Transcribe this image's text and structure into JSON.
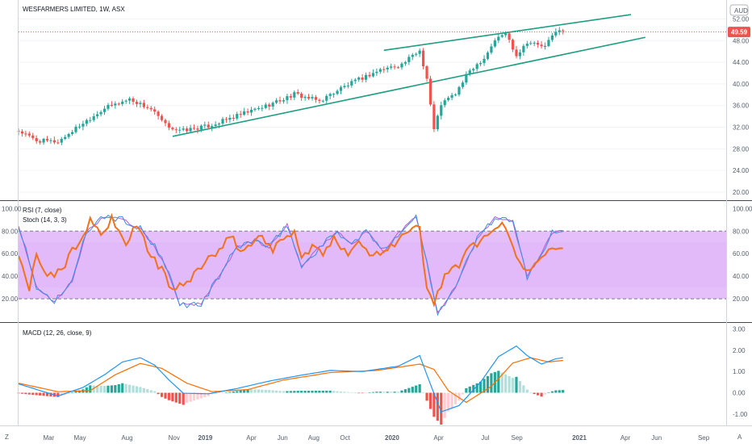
{
  "chart_data": [
    {
      "type": "candlestick",
      "title": "WESFARMERS LIMITED, 1W, ASX",
      "currency": "AUD",
      "last_price": "49.59",
      "y_ticks": [
        "52.00",
        "48.00",
        "44.00",
        "40.00",
        "36.00",
        "32.00",
        "28.00",
        "24.00",
        "20.00"
      ],
      "ylim": [
        18.5,
        55.5
      ],
      "colors": {
        "up": "#26a69a",
        "down": "#ef5350",
        "trendline": "#1e9e82",
        "price_tag": "#ef5350"
      },
      "trendlines": [
        {
          "from": [
            "2018-10-29",
            30.3
          ],
          "to": [
            "2021-05-10",
            48.6
          ]
        },
        {
          "from": [
            "2019-12-16",
            46.2
          ],
          "to": [
            "2021-04-12",
            52.8
          ]
        }
      ],
      "x_labels": [
        "Mar",
        "May",
        "Aug",
        "Nov",
        "2019",
        "Apr",
        "Jun",
        "Aug",
        "Oct",
        "2020",
        "Apr",
        "Jul",
        "Sep",
        "2021",
        "Apr",
        "Jun",
        "Sep"
      ],
      "close_anchors": [
        [
          "2018-01-01",
          31.3
        ],
        [
          "2018-02-05",
          29.5
        ],
        [
          "2018-03-19",
          29.3
        ],
        [
          "2018-05-07",
          32.8
        ],
        [
          "2018-06-18",
          35.5
        ],
        [
          "2018-08-06",
          37.2
        ],
        [
          "2018-09-17",
          35.3
        ],
        [
          "2018-10-15",
          32.4
        ],
        [
          "2018-11-12",
          31.3
        ],
        [
          "2019-01-07",
          32.2
        ],
        [
          "2019-02-18",
          33.6
        ],
        [
          "2019-04-22",
          35.7
        ],
        [
          "2019-06-03",
          37.2
        ],
        [
          "2019-06-24",
          38.1
        ],
        [
          "2019-08-12",
          36.8
        ],
        [
          "2019-09-23",
          39.2
        ],
        [
          "2019-11-04",
          41.1
        ],
        [
          "2019-12-09",
          42.6
        ],
        [
          "2020-01-20",
          43.6
        ],
        [
          "2020-02-24",
          46.2
        ],
        [
          "2020-03-09",
          41.0
        ],
        [
          "2020-03-23",
          31.5
        ],
        [
          "2020-04-06",
          36.3
        ],
        [
          "2020-05-04",
          38.2
        ],
        [
          "2020-06-01",
          42.5
        ],
        [
          "2020-06-29",
          44.8
        ],
        [
          "2020-07-20",
          48.1
        ],
        [
          "2020-08-10",
          49.4
        ],
        [
          "2020-08-31",
          45.3
        ],
        [
          "2020-09-21",
          47.8
        ],
        [
          "2020-10-26",
          46.8
        ],
        [
          "2020-11-16",
          49.9
        ],
        [
          "2020-11-30",
          49.6
        ]
      ]
    },
    {
      "type": "line",
      "title": "RSI (7, close)",
      "subtitle": "Stoch (14, 3, 3)",
      "y_ticks": [
        "100.00",
        "80.00",
        "60.00",
        "40.00",
        "20.00"
      ],
      "ylim": [
        0,
        106
      ],
      "band": [
        20,
        80
      ],
      "colors": {
        "rsi": "#f2711c",
        "stoch_k": "#3a8ee6",
        "stoch_d": "#b35cd4",
        "band": "#cf8bf5"
      },
      "rsi_anchors": [
        [
          "2018-01-01",
          58
        ],
        [
          "2018-01-22",
          25
        ],
        [
          "2018-02-05",
          62
        ],
        [
          "2018-02-26",
          38
        ],
        [
          "2018-03-26",
          46
        ],
        [
          "2018-04-30",
          72
        ],
        [
          "2018-05-21",
          88
        ],
        [
          "2018-06-18",
          76
        ],
        [
          "2018-07-02",
          90
        ],
        [
          "2018-07-30",
          67
        ],
        [
          "2018-08-20",
          88
        ],
        [
          "2018-09-10",
          64
        ],
        [
          "2018-10-08",
          45
        ],
        [
          "2018-10-29",
          28
        ],
        [
          "2018-11-19",
          31
        ],
        [
          "2018-12-10",
          42
        ],
        [
          "2019-01-07",
          56
        ],
        [
          "2019-02-04",
          62
        ],
        [
          "2019-02-18",
          78
        ],
        [
          "2019-03-11",
          62
        ],
        [
          "2019-04-01",
          68
        ],
        [
          "2019-04-22",
          78
        ],
        [
          "2019-05-13",
          62
        ],
        [
          "2019-06-03",
          74
        ],
        [
          "2019-06-24",
          81
        ],
        [
          "2019-07-08",
          55
        ],
        [
          "2019-07-29",
          66
        ],
        [
          "2019-08-19",
          60
        ],
        [
          "2019-09-09",
          72
        ],
        [
          "2019-10-07",
          62
        ],
        [
          "2019-10-28",
          72
        ],
        [
          "2019-11-18",
          58
        ],
        [
          "2019-12-09",
          62
        ],
        [
          "2020-01-06",
          70
        ],
        [
          "2020-02-03",
          80
        ],
        [
          "2020-02-24",
          83
        ],
        [
          "2020-03-09",
          28
        ],
        [
          "2020-03-23",
          15
        ],
        [
          "2020-04-13",
          43
        ],
        [
          "2020-05-11",
          48
        ],
        [
          "2020-06-01",
          66
        ],
        [
          "2020-06-29",
          74
        ],
        [
          "2020-07-20",
          85
        ],
        [
          "2020-08-10",
          83
        ],
        [
          "2020-09-07",
          51
        ],
        [
          "2020-09-28",
          44
        ],
        [
          "2020-10-19",
          60
        ],
        [
          "2020-11-09",
          68
        ],
        [
          "2020-11-30",
          67
        ]
      ],
      "stoch_anchors": [
        [
          "2018-01-01",
          85
        ],
        [
          "2018-02-05",
          30
        ],
        [
          "2018-03-12",
          18
        ],
        [
          "2018-04-16",
          35
        ],
        [
          "2018-05-14",
          80
        ],
        [
          "2018-06-18",
          93
        ],
        [
          "2018-07-23",
          90
        ],
        [
          "2018-08-27",
          82
        ],
        [
          "2018-09-24",
          66
        ],
        [
          "2018-10-22",
          42
        ],
        [
          "2018-11-12",
          15
        ],
        [
          "2018-12-24",
          15
        ],
        [
          "2019-01-28",
          40
        ],
        [
          "2019-03-04",
          66
        ],
        [
          "2019-04-08",
          72
        ],
        [
          "2019-05-06",
          65
        ],
        [
          "2019-06-10",
          86
        ],
        [
          "2019-07-08",
          48
        ],
        [
          "2019-08-05",
          62
        ],
        [
          "2019-09-16",
          80
        ],
        [
          "2019-10-14",
          68
        ],
        [
          "2019-11-11",
          80
        ],
        [
          "2019-12-16",
          62
        ],
        [
          "2020-01-13",
          78
        ],
        [
          "2020-02-17",
          93
        ],
        [
          "2020-03-09",
          52
        ],
        [
          "2020-03-30",
          8
        ],
        [
          "2020-05-04",
          30
        ],
        [
          "2020-06-15",
          74
        ],
        [
          "2020-07-20",
          92
        ],
        [
          "2020-08-24",
          88
        ],
        [
          "2020-09-21",
          40
        ],
        [
          "2020-10-12",
          55
        ],
        [
          "2020-11-09",
          78
        ],
        [
          "2020-11-30",
          80
        ]
      ]
    },
    {
      "type": "bar",
      "title": "MACD (12, 26, close, 9)",
      "y_ticks": [
        "3.00",
        "2.00",
        "1.00",
        "0.00",
        "-1.00"
      ],
      "ylim": [
        -1.5,
        3.25
      ],
      "colors": {
        "macd": "#2196f3",
        "signal": "#ff6d00",
        "hist_up_strong": "#26a69a",
        "hist_up_weak": "#b2dfdb",
        "hist_down_strong": "#ef5350",
        "hist_down_weak": "#ffcdd2"
      },
      "macd_anchors": [
        [
          "2018-01-01",
          0.42
        ],
        [
          "2018-02-19",
          0.05
        ],
        [
          "2018-03-19",
          -0.15
        ],
        [
          "2018-05-07",
          0.25
        ],
        [
          "2018-06-18",
          0.85
        ],
        [
          "2018-07-23",
          1.45
        ],
        [
          "2018-08-27",
          1.65
        ],
        [
          "2018-09-24",
          1.3
        ],
        [
          "2018-10-22",
          0.6
        ],
        [
          "2018-11-19",
          -0.02
        ],
        [
          "2019-01-07",
          -0.05
        ],
        [
          "2019-03-04",
          0.2
        ],
        [
          "2019-05-06",
          0.55
        ],
        [
          "2019-07-01",
          0.8
        ],
        [
          "2019-09-02",
          1.05
        ],
        [
          "2019-11-04",
          1.0
        ],
        [
          "2020-01-13",
          1.25
        ],
        [
          "2020-02-24",
          1.75
        ],
        [
          "2020-03-16",
          0.4
        ],
        [
          "2020-04-06",
          -0.9
        ],
        [
          "2020-05-11",
          -0.6
        ],
        [
          "2020-06-22",
          0.5
        ],
        [
          "2020-07-27",
          1.7
        ],
        [
          "2020-08-31",
          2.2
        ],
        [
          "2020-09-21",
          1.75
        ],
        [
          "2020-10-19",
          1.35
        ],
        [
          "2020-11-16",
          1.6
        ],
        [
          "2020-11-30",
          1.65
        ]
      ],
      "signal_anchors": [
        [
          "2018-01-01",
          0.45
        ],
        [
          "2018-03-19",
          0.05
        ],
        [
          "2018-05-21",
          0.1
        ],
        [
          "2018-07-09",
          0.85
        ],
        [
          "2018-08-27",
          1.38
        ],
        [
          "2018-10-08",
          1.15
        ],
        [
          "2018-11-26",
          0.45
        ],
        [
          "2019-01-14",
          0.05
        ],
        [
          "2019-03-25",
          0.15
        ],
        [
          "2019-06-03",
          0.6
        ],
        [
          "2019-09-02",
          0.95
        ],
        [
          "2019-12-02",
          1.05
        ],
        [
          "2020-02-24",
          1.35
        ],
        [
          "2020-03-23",
          1.1
        ],
        [
          "2020-04-20",
          0.1
        ],
        [
          "2020-05-25",
          -0.45
        ],
        [
          "2020-07-13",
          0.3
        ],
        [
          "2020-08-24",
          1.4
        ],
        [
          "2020-09-28",
          1.65
        ],
        [
          "2020-11-02",
          1.45
        ],
        [
          "2020-11-30",
          1.52
        ]
      ]
    }
  ]
}
